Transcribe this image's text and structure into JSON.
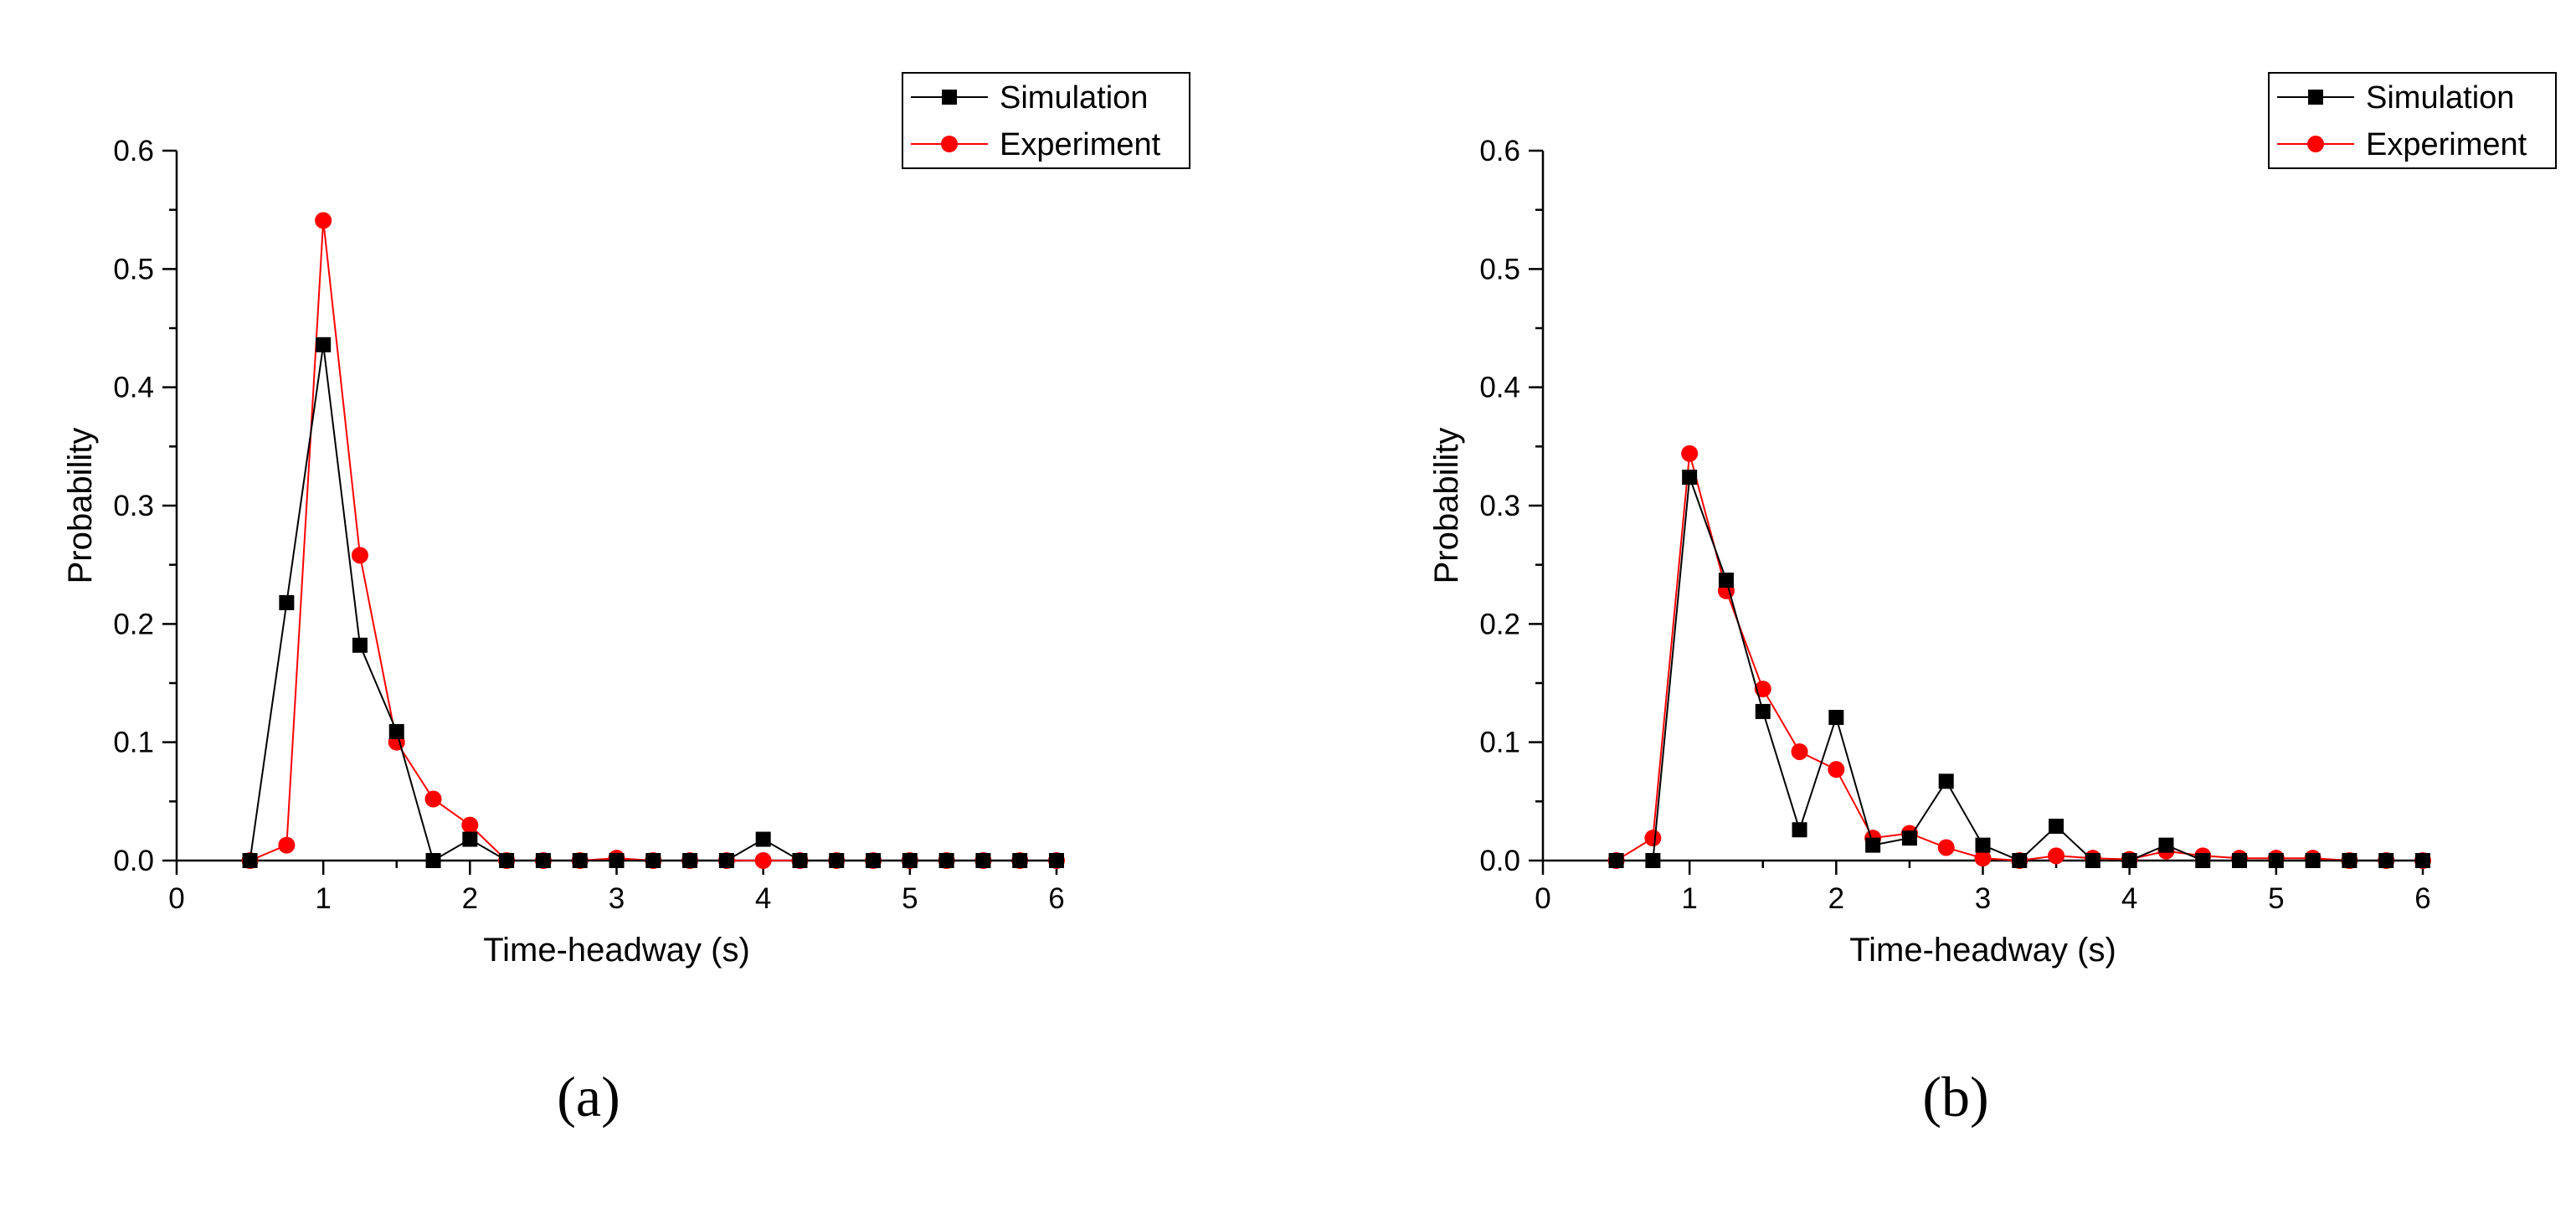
{
  "chart_data": [
    {
      "type": "line",
      "panel_label": "(a)",
      "xlabel": "Time-headway (s)",
      "ylabel": "Probability",
      "xlim": [
        0,
        6
      ],
      "ylim": [
        0,
        0.6
      ],
      "xticks": [
        "0",
        "1",
        "2",
        "3",
        "4",
        "5",
        "6"
      ],
      "yticks": [
        "0.0",
        "0.1",
        "0.2",
        "0.3",
        "0.4",
        "0.5",
        "0.6"
      ],
      "legend_position": "top-right",
      "series": [
        {
          "name": "Simulation",
          "color": "#000000",
          "marker": "square",
          "x": [
            0.5,
            0.75,
            1.0,
            1.25,
            1.5,
            1.75,
            2.0,
            2.25,
            2.5,
            2.75,
            3.0,
            3.25,
            3.5,
            3.75,
            4.0,
            4.25,
            4.5,
            4.75,
            5.0,
            5.25,
            5.5,
            5.75,
            6.0
          ],
          "y": [
            0.0,
            0.218,
            0.436,
            0.182,
            0.109,
            0.0,
            0.018,
            0.0,
            0.0,
            0.0,
            0.0,
            0.0,
            0.0,
            0.0,
            0.018,
            0.0,
            0.0,
            0.0,
            0.0,
            0.0,
            0.0,
            0.0,
            0.0
          ]
        },
        {
          "name": "Experiment",
          "color": "#ff0000",
          "marker": "circle",
          "x": [
            0.5,
            0.75,
            1.0,
            1.25,
            1.5,
            1.75,
            2.0,
            2.25,
            2.5,
            2.75,
            3.0,
            3.25,
            3.5,
            3.75,
            4.0,
            4.25,
            4.5,
            4.75,
            5.0,
            5.25,
            5.5,
            5.75,
            6.0
          ],
          "y": [
            0.0,
            0.013,
            0.541,
            0.258,
            0.1,
            0.052,
            0.03,
            0.0,
            0.0,
            0.0,
            0.002,
            0.0,
            0.0,
            0.0,
            0.0,
            0.0,
            0.0,
            0.0,
            0.0,
            0.0,
            0.0,
            0.0,
            0.0
          ]
        }
      ]
    },
    {
      "type": "line",
      "panel_label": "(b)",
      "xlabel": "Time-headway (s)",
      "ylabel": "Probability",
      "xlim": [
        0,
        6
      ],
      "ylim": [
        0,
        0.6
      ],
      "xticks": [
        "0",
        "1",
        "2",
        "3",
        "4",
        "5",
        "6"
      ],
      "yticks": [
        "0.0",
        "0.1",
        "0.2",
        "0.3",
        "0.4",
        "0.5",
        "0.6"
      ],
      "legend_position": "top-right",
      "series": [
        {
          "name": "Simulation",
          "color": "#000000",
          "marker": "square",
          "x": [
            0.5,
            0.75,
            1.0,
            1.25,
            1.5,
            1.75,
            2.0,
            2.25,
            2.5,
            2.75,
            3.0,
            3.25,
            3.5,
            3.75,
            4.0,
            4.25,
            4.5,
            4.75,
            5.0,
            5.25,
            5.5,
            5.75,
            6.0
          ],
          "y": [
            0.0,
            0.0,
            0.324,
            0.237,
            0.126,
            0.026,
            0.121,
            0.013,
            0.019,
            0.067,
            0.013,
            0.0,
            0.029,
            0.0,
            0.0,
            0.013,
            0.0,
            0.0,
            0.0,
            0.0,
            0.0,
            0.0,
            0.0
          ]
        },
        {
          "name": "Experiment",
          "color": "#ff0000",
          "marker": "circle",
          "x": [
            0.5,
            0.75,
            1.0,
            1.25,
            1.5,
            1.75,
            2.0,
            2.25,
            2.5,
            2.75,
            3.0,
            3.25,
            3.5,
            3.75,
            4.0,
            4.25,
            4.5,
            4.75,
            5.0,
            5.25,
            5.5,
            5.75,
            6.0
          ],
          "y": [
            0.0,
            0.019,
            0.344,
            0.228,
            0.145,
            0.092,
            0.077,
            0.019,
            0.023,
            0.011,
            0.002,
            0.0,
            0.004,
            0.002,
            0.001,
            0.008,
            0.004,
            0.002,
            0.002,
            0.002,
            0.0,
            0.0,
            0.0
          ]
        }
      ]
    }
  ]
}
